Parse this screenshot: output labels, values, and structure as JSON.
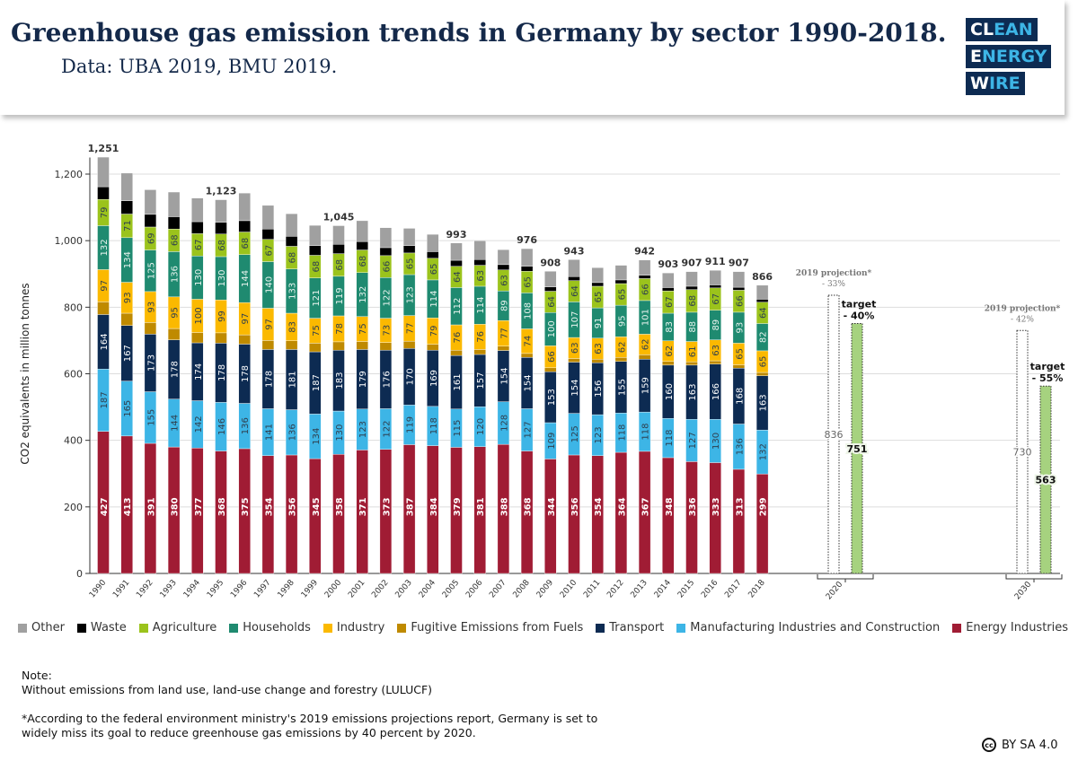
{
  "header": {
    "title": "Greenhouse gas emission trends in Germany by sector 1990-2018.",
    "subtitle": "Data: UBA 2019, BMU 2019."
  },
  "logo": {
    "lines": [
      "CLEAN",
      "ENERGY",
      "WIRE"
    ]
  },
  "colors": {
    "Other": "#a0a0a0",
    "Waste": "#000000",
    "Agriculture": "#9bc31c",
    "Households": "#1f8a70",
    "Industry": "#fbb900",
    "Fugitive Emissions from Fuels": "#bf8a00",
    "Transport": "#0d2b52",
    "Manufacturing Industries and Construction": "#3db5e6",
    "Energy Industries": "#a01c34",
    "target": "#a6d27f"
  },
  "chart_data": {
    "type": "bar",
    "stacked": true,
    "ylabel": "CO2 equivalents in million tonnes",
    "ylim": [
      0,
      1250
    ],
    "yticks": [
      0,
      200,
      400,
      600,
      800,
      1000,
      1200
    ],
    "ytick_labels": [
      "0",
      "200",
      "400",
      "600",
      "800",
      "1,000",
      "1,200"
    ],
    "grid": true,
    "legend_position": "bottom",
    "categories": [
      "1990",
      "1991",
      "1992",
      "1993",
      "1994",
      "1995",
      "1996",
      "1997",
      "1998",
      "1999",
      "2000",
      "2001",
      "2002",
      "2003",
      "2004",
      "2005",
      "2006",
      "2007",
      "2008",
      "2009",
      "2010",
      "2011",
      "2012",
      "2013",
      "2014",
      "2015",
      "2016",
      "2017",
      "2018"
    ],
    "series": [
      {
        "name": "Energy Industries",
        "labeled": true,
        "values": [
          427,
          413,
          391,
          380,
          377,
          368,
          375,
          354,
          356,
          345,
          358,
          371,
          373,
          387,
          384,
          379,
          381,
          388,
          368,
          344,
          356,
          354,
          364,
          367,
          348,
          336,
          333,
          313,
          299
        ]
      },
      {
        "name": "Manufacturing Industries and Construction",
        "labeled": true,
        "values": [
          187,
          165,
          155,
          144,
          142,
          146,
          136,
          141,
          136,
          134,
          130,
          123,
          122,
          119,
          118,
          115,
          120,
          128,
          127,
          109,
          125,
          123,
          118,
          118,
          118,
          127,
          130,
          136,
          132
        ]
      },
      {
        "name": "Transport",
        "labeled": true,
        "values": [
          164,
          167,
          173,
          178,
          174,
          178,
          178,
          178,
          181,
          187,
          183,
          179,
          176,
          170,
          169,
          161,
          157,
          154,
          154,
          153,
          154,
          156,
          155,
          159,
          160,
          163,
          166,
          168,
          163
        ]
      },
      {
        "name": "Fugitive Emissions from Fuels",
        "labeled": false,
        "values": [
          38,
          37,
          35,
          34,
          31,
          31,
          28,
          27,
          26,
          26,
          25,
          24,
          23,
          22,
          18,
          16,
          15,
          13,
          12,
          12,
          11,
          11,
          12,
          13,
          11,
          10,
          10,
          10,
          10
        ]
      },
      {
        "name": "Industry",
        "labeled": true,
        "values": [
          97,
          93,
          93,
          95,
          100,
          99,
          97,
          97,
          83,
          75,
          78,
          75,
          73,
          77,
          79,
          76,
          76,
          77,
          74,
          66,
          63,
          63,
          62,
          62,
          62,
          61,
          63,
          65,
          65
        ]
      },
      {
        "name": "Households",
        "labeled": true,
        "values": [
          132,
          134,
          125,
          136,
          130,
          130,
          144,
          140,
          133,
          121,
          119,
          132,
          122,
          123,
          114,
          112,
          114,
          89,
          108,
          100,
          107,
          91,
          95,
          101,
          83,
          88,
          89,
          93,
          82
        ]
      },
      {
        "name": "Agriculture",
        "labeled": true,
        "values": [
          79,
          71,
          69,
          68,
          67,
          68,
          68,
          67,
          68,
          68,
          68,
          68,
          66,
          65,
          65,
          64,
          63,
          63,
          65,
          64,
          64,
          65,
          65,
          66,
          67,
          68,
          67,
          66,
          64
        ]
      },
      {
        "name": "Waste",
        "labeled": false,
        "values": [
          38,
          40,
          38,
          37,
          36,
          35,
          34,
          31,
          30,
          29,
          28,
          25,
          24,
          22,
          20,
          18,
          17,
          16,
          15,
          13,
          12,
          11,
          11,
          10,
          10,
          10,
          9,
          9,
          9
        ]
      },
      {
        "name": "Other",
        "labeled": false,
        "values": [
          89,
          83,
          74,
          74,
          71,
          68,
          83,
          71,
          68,
          61,
          56,
          63,
          60,
          52,
          52,
          52,
          57,
          45,
          53,
          47,
          51,
          45,
          44,
          46,
          44,
          44,
          44,
          47,
          42
        ]
      }
    ],
    "total_labels": {
      "1990": "1,251",
      "1995": "1,123",
      "2000": "1,045",
      "2005": "993",
      "2008": "976",
      "2009": "908",
      "2010": "943",
      "2013": "942",
      "2014": "903",
      "2015": "907",
      "2016": "911",
      "2017": "907",
      "2018": "866"
    },
    "goals": [
      {
        "year": "2020",
        "projection": 836,
        "projection_label": "2019 projection*",
        "projection_pct": "- 33%",
        "target": 751,
        "target_label": "target",
        "target_pct": "- 40%"
      },
      {
        "year": "2030",
        "projection": 730,
        "projection_label": "2019 projection*",
        "projection_pct": "- 42%",
        "target": 563,
        "target_label": "target",
        "target_pct": "- 55%"
      }
    ]
  },
  "legend": [
    "Other",
    "Waste",
    "Agriculture",
    "Households",
    "Industry",
    "Fugitive Emissions from Fuels",
    "Transport",
    "Manufacturing Industries and Construction",
    "Energy Industries"
  ],
  "note": {
    "heading": "Note:",
    "line1": "Without emissions from land use, land-use change and forestry (LULUCF)",
    "line2": "*According to the federal environment ministry's 2019 emissions projections report, Germany is set to",
    "line3": "widely miss its goal to reduce greenhouse gas emissions by 40 percent by 2020."
  },
  "license": {
    "icon": "cc",
    "text": "BY SA 4.0"
  }
}
